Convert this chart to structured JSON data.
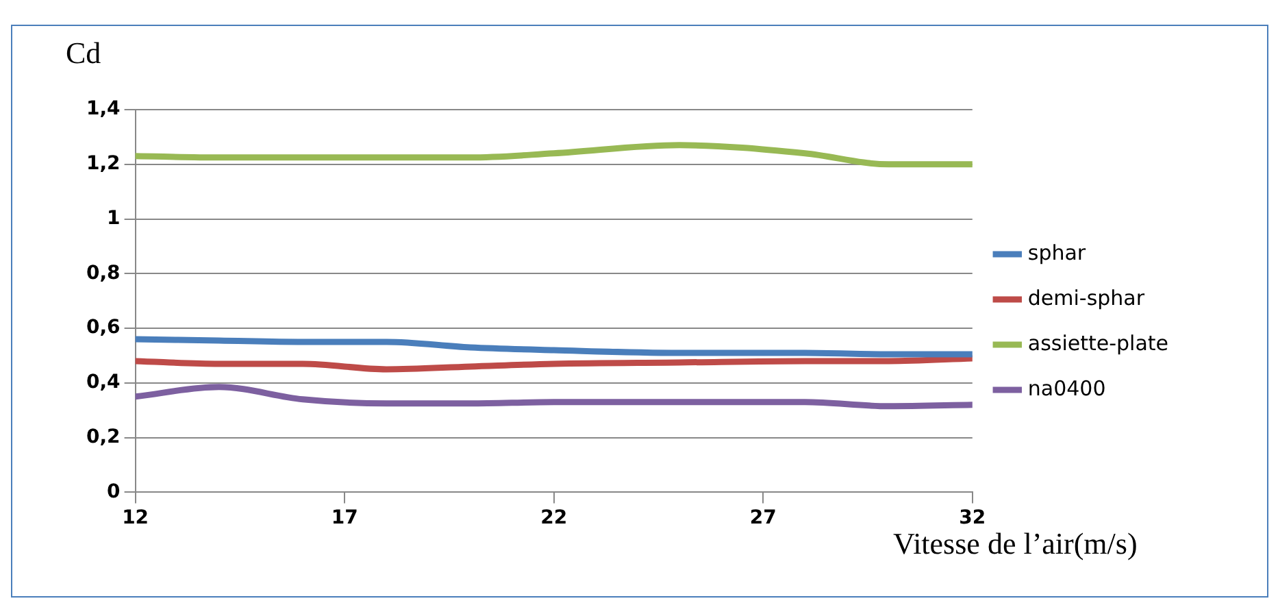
{
  "chart_data": {
    "type": "line",
    "ylabel": "Cd",
    "xlabel": "Vitesse de l’air(m/s)",
    "x": [
      12,
      14,
      16,
      18,
      20,
      22,
      25,
      28,
      30,
      32
    ],
    "series": [
      {
        "name": "sphar",
        "color": "#4a7ebb",
        "values": [
          0.56,
          0.555,
          0.55,
          0.55,
          0.53,
          0.52,
          0.51,
          0.51,
          0.505,
          0.505
        ]
      },
      {
        "name": "demi-sphar",
        "color": "#be4b48",
        "values": [
          0.48,
          0.47,
          0.47,
          0.45,
          0.46,
          0.47,
          0.475,
          0.48,
          0.48,
          0.49
        ]
      },
      {
        "name": "assiette-plate",
        "color": "#98b954",
        "values": [
          1.23,
          1.225,
          1.225,
          1.225,
          1.225,
          1.24,
          1.27,
          1.24,
          1.2,
          1.2
        ]
      },
      {
        "name": "na0400",
        "color": "#7d60a0",
        "values": [
          0.35,
          0.385,
          0.34,
          0.325,
          0.325,
          0.33,
          0.33,
          0.33,
          0.315,
          0.32
        ]
      }
    ],
    "xlim": [
      12,
      32
    ],
    "xticks": [
      12,
      17,
      22,
      27,
      32
    ],
    "ylim": [
      0,
      1.4
    ],
    "yticks": [
      0,
      {
        "value": 0.2,
        "label": "0,2"
      },
      {
        "value": 0.4,
        "label": "0,4"
      },
      {
        "value": 0.6,
        "label": "0,6"
      },
      {
        "value": 0.8,
        "label": "0,8"
      },
      1,
      {
        "value": 1.2,
        "label": "1,2"
      },
      {
        "value": 1.4,
        "label": "1,4"
      }
    ],
    "grid": "y",
    "legend": "right",
    "marker": "none",
    "line_style": "solid"
  }
}
